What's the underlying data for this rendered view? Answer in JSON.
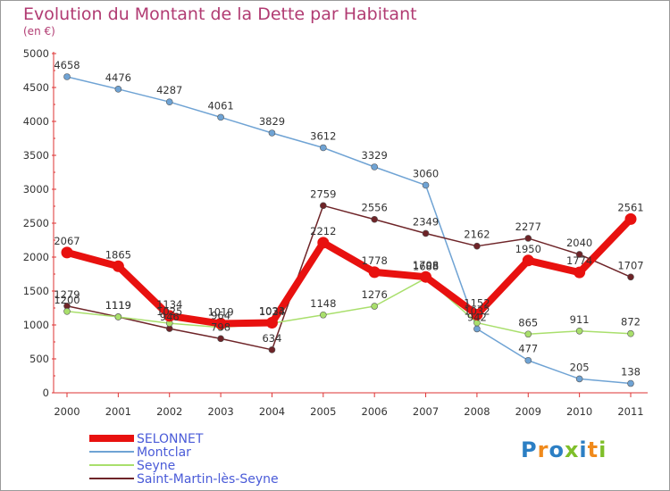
{
  "chart_data": {
    "type": "line",
    "title": "Evolution du Montant de la Dette par Habitant",
    "subtitle": "(en €)",
    "categories": [
      "2000",
      "2001",
      "2002",
      "2003",
      "2004",
      "2005",
      "2006",
      "2007",
      "2008",
      "2009",
      "2010",
      "2011"
    ],
    "ylim": [
      0,
      5000
    ],
    "yticks": [
      0,
      500,
      1000,
      1500,
      2000,
      2500,
      3000,
      3500,
      4000,
      4500,
      5000
    ],
    "grid": false,
    "legend_position": "bottom-left",
    "series": [
      {
        "name": "SELONNET",
        "color": "#e8110f",
        "values": [
          2067,
          1865,
          1134,
          1019,
          1033,
          2212,
          1778,
          1708,
          1152,
          1950,
          1774,
          2561
        ]
      },
      {
        "name": "Montclar",
        "color": "#6fa3d4",
        "values": [
          4658,
          4476,
          4287,
          4061,
          3829,
          3612,
          3329,
          3060,
          942,
          477,
          205,
          138
        ]
      },
      {
        "name": "Seyne",
        "color": "#a9df6c",
        "values": [
          1200,
          1119,
          1025,
          964,
          1024,
          1148,
          1276,
          1688,
          1032,
          865,
          911,
          872
        ]
      },
      {
        "name": "Saint-Martin-lès-Seyne",
        "color": "#6e2428",
        "values": [
          1279,
          1119,
          946,
          798,
          634,
          2759,
          2556,
          2349,
          2162,
          2277,
          2040,
          1707
        ]
      }
    ]
  },
  "logo": {
    "text": "Proxiti",
    "colors": [
      "#2c7fc4",
      "#f08a1c",
      "#2c7fc4",
      "#7fbf2a",
      "#2c7fc4",
      "#f08a1c",
      "#7fbf2a"
    ]
  }
}
